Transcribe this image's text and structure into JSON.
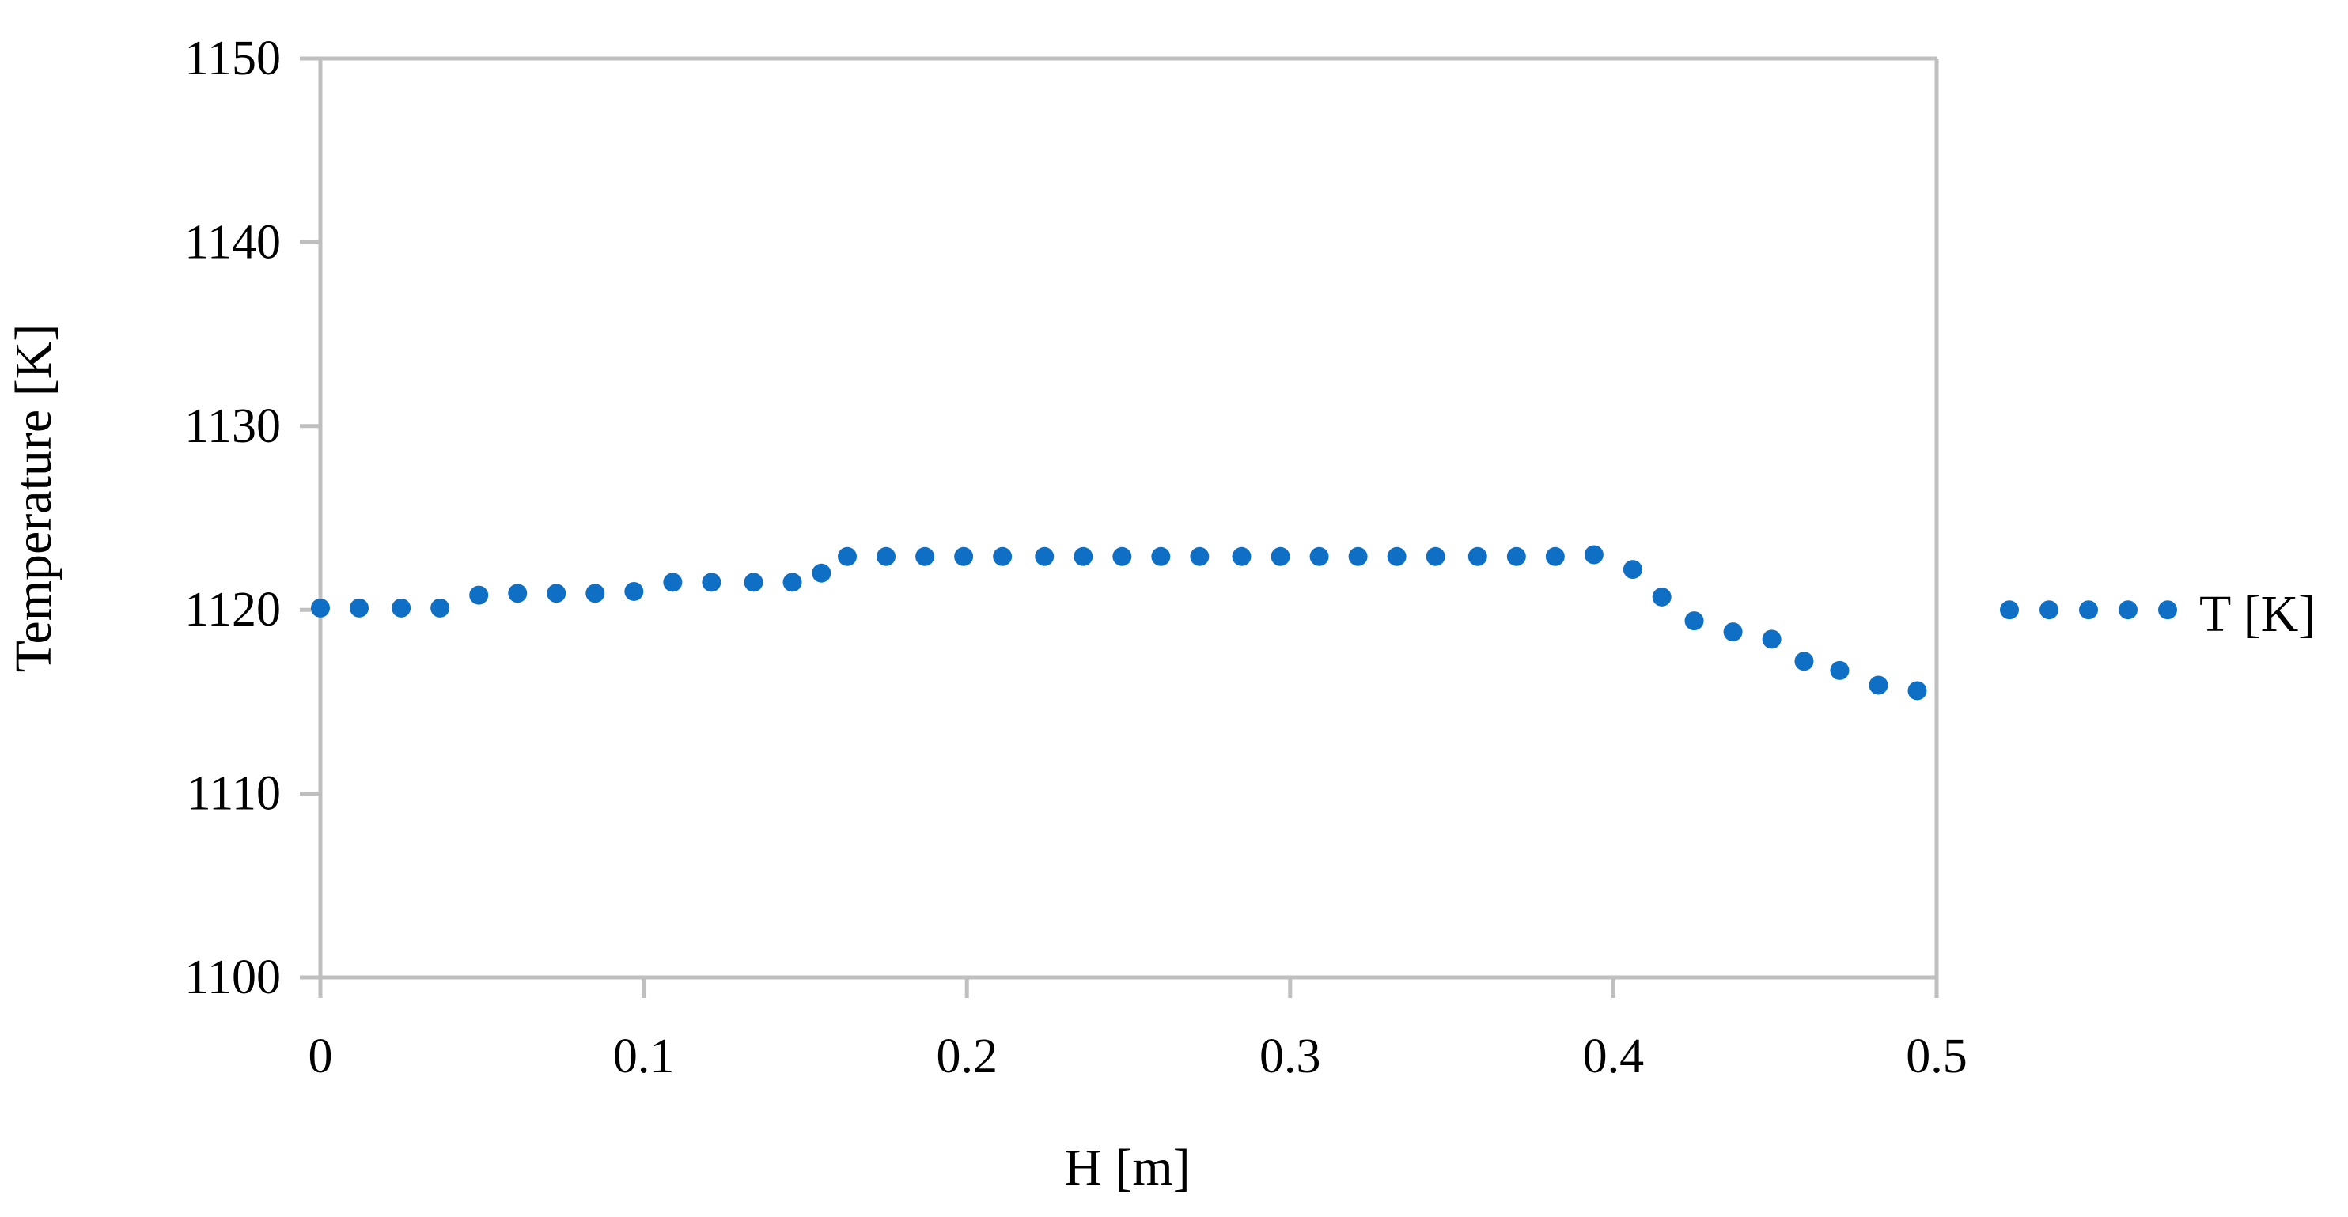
{
  "chart_data": {
    "type": "line",
    "title": "",
    "xlabel": "H [m]",
    "ylabel": "Temperature [K]",
    "xlim": [
      0,
      0.5
    ],
    "ylim": [
      1100,
      1150
    ],
    "x_ticks": [
      "0",
      "0.1",
      "0.2",
      "0.3",
      "0.4",
      "0.5"
    ],
    "y_ticks": [
      "1100",
      "1110",
      "1120",
      "1130",
      "1140",
      "1150"
    ],
    "grid": false,
    "legend_position": "right",
    "line_style": "dotted",
    "colors": {
      "series": "#0E6FC4",
      "frame": "#BFBFBF",
      "text": "#000000"
    },
    "series": [
      {
        "name": "T [K]",
        "x": [
          0,
          0.012,
          0.025,
          0.037,
          0.049,
          0.061,
          0.073,
          0.085,
          0.097,
          0.109,
          0.121,
          0.134,
          0.146,
          0.155,
          0.163,
          0.175,
          0.187,
          0.199,
          0.211,
          0.224,
          0.236,
          0.248,
          0.26,
          0.272,
          0.285,
          0.297,
          0.309,
          0.321,
          0.333,
          0.345,
          0.358,
          0.37,
          0.382,
          0.394,
          0.406,
          0.415,
          0.425,
          0.437,
          0.449,
          0.459,
          0.47,
          0.482,
          0.494
        ],
        "values": [
          1120.1,
          1120.1,
          1120.1,
          1120.1,
          1120.8,
          1120.9,
          1120.9,
          1120.9,
          1121.0,
          1121.5,
          1121.5,
          1121.5,
          1121.5,
          1122.0,
          1122.9,
          1122.9,
          1122.9,
          1122.9,
          1122.9,
          1122.9,
          1122.9,
          1122.9,
          1122.9,
          1122.9,
          1122.9,
          1122.9,
          1122.9,
          1122.9,
          1122.9,
          1122.9,
          1122.9,
          1122.9,
          1122.9,
          1123.0,
          1122.2,
          1120.7,
          1119.4,
          1118.8,
          1118.4,
          1117.2,
          1116.7,
          1115.9,
          1115.6
        ]
      }
    ]
  }
}
